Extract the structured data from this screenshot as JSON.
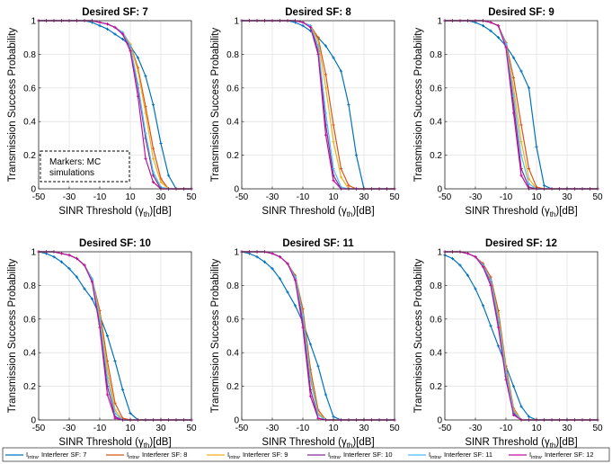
{
  "figure": {
    "annotation": [
      "Markers: MC",
      "simulations"
    ],
    "legend": {
      "label_prefix": "I",
      "label_sub": "intra",
      "label_suffix": ", Interferer SF: ",
      "entries": [
        {
          "sf": "7",
          "color": "#0072BD"
        },
        {
          "sf": "8",
          "color": "#D95319"
        },
        {
          "sf": "9",
          "color": "#EDB120"
        },
        {
          "sf": "10",
          "color": "#7E2F8E"
        },
        {
          "sf": "11",
          "color": "#4DBEEE"
        },
        {
          "sf": "12",
          "color": "#C0109A"
        }
      ]
    }
  },
  "chart_data": [
    {
      "type": "line",
      "title": "Desired SF: 7",
      "xlabel": "SINR Threshold",
      "xlabel_sym": "γ",
      "xlabel_sub": "th",
      "xlabel_unit": "[dB]",
      "ylabel": "Transmission Success Probability",
      "xlim": [
        -50,
        50
      ],
      "ylim": [
        0,
        1
      ],
      "grid": true,
      "xticks": [
        -50,
        -30,
        -10,
        10,
        30,
        50
      ],
      "yticks": [
        0,
        0.2,
        0.4,
        0.6,
        0.8,
        1
      ],
      "x": [
        -50,
        -45,
        -40,
        -35,
        -30,
        -25,
        -20,
        -15,
        -10,
        -5,
        0,
        5,
        10,
        15,
        20,
        25,
        30,
        35,
        40,
        45,
        50
      ],
      "series": [
        {
          "values": [
            1,
            1,
            1,
            1,
            1,
            1,
            1,
            0.99,
            0.97,
            0.95,
            0.92,
            0.89,
            0.85,
            0.78,
            0.67,
            0.5,
            0.27,
            0.08,
            0,
            0,
            0
          ]
        },
        {
          "values": [
            1,
            1,
            1,
            1,
            1,
            1,
            1,
            1,
            0.99,
            0.98,
            0.96,
            0.93,
            0.86,
            0.72,
            0.49,
            0.24,
            0.06,
            0,
            0,
            0,
            0
          ]
        },
        {
          "values": [
            1,
            1,
            1,
            1,
            1,
            1,
            1,
            1,
            0.99,
            0.98,
            0.96,
            0.93,
            0.86,
            0.7,
            0.45,
            0.18,
            0.04,
            0,
            0,
            0,
            0
          ]
        },
        {
          "values": [
            1,
            1,
            1,
            1,
            1,
            1,
            1,
            1,
            0.99,
            0.98,
            0.96,
            0.93,
            0.84,
            0.6,
            0.3,
            0.08,
            0,
            0,
            0,
            0,
            0
          ]
        },
        {
          "values": [
            1,
            1,
            1,
            1,
            1,
            1,
            1,
            1,
            0.99,
            0.98,
            0.96,
            0.93,
            0.85,
            0.62,
            0.33,
            0.1,
            0.01,
            0,
            0,
            0,
            0
          ]
        },
        {
          "values": [
            1,
            1,
            1,
            1,
            1,
            1,
            1,
            1,
            0.99,
            0.98,
            0.96,
            0.92,
            0.82,
            0.55,
            0.18,
            0.04,
            0,
            0,
            0,
            0,
            0
          ]
        }
      ]
    },
    {
      "type": "line",
      "title": "Desired SF: 8",
      "xlabel": "SINR Threshold",
      "xlabel_sym": "γ",
      "xlabel_sub": "th",
      "xlabel_unit": "[dB]",
      "ylabel": "Transmission Success Probability",
      "xlim": [
        -50,
        50
      ],
      "ylim": [
        0,
        1
      ],
      "grid": true,
      "xticks": [
        -50,
        -30,
        -10,
        10,
        30,
        50
      ],
      "yticks": [
        0,
        0.2,
        0.4,
        0.6,
        0.8,
        1
      ],
      "x": [
        -50,
        -45,
        -40,
        -35,
        -30,
        -25,
        -20,
        -15,
        -10,
        -5,
        0,
        5,
        10,
        15,
        20,
        25,
        30,
        35,
        40,
        45,
        50
      ],
      "series": [
        {
          "values": [
            1,
            1,
            1,
            1,
            1,
            1,
            1,
            0.99,
            0.97,
            0.94,
            0.9,
            0.85,
            0.78,
            0.7,
            0.5,
            0.2,
            0,
            0,
            0,
            0,
            0
          ]
        },
        {
          "values": [
            1,
            1,
            1,
            1,
            1,
            1,
            1,
            1,
            0.99,
            0.97,
            0.9,
            0.68,
            0.38,
            0.12,
            0.02,
            0,
            0,
            0,
            0,
            0,
            0
          ]
        },
        {
          "values": [
            1,
            1,
            1,
            1,
            1,
            1,
            1,
            1,
            0.99,
            0.97,
            0.88,
            0.6,
            0.28,
            0.07,
            0,
            0,
            0,
            0,
            0,
            0,
            0
          ]
        },
        {
          "values": [
            1,
            1,
            1,
            1,
            1,
            1,
            1,
            1,
            0.99,
            0.97,
            0.82,
            0.38,
            0.08,
            0,
            0,
            0,
            0,
            0,
            0,
            0,
            0
          ]
        },
        {
          "values": [
            1,
            1,
            1,
            1,
            1,
            1,
            1,
            1,
            0.99,
            0.97,
            0.85,
            0.45,
            0.12,
            0.01,
            0,
            0,
            0,
            0,
            0,
            0,
            0
          ]
        },
        {
          "values": [
            1,
            1,
            1,
            1,
            1,
            1,
            1,
            1,
            0.99,
            0.96,
            0.8,
            0.32,
            0.05,
            0,
            0,
            0,
            0,
            0,
            0,
            0,
            0
          ]
        }
      ]
    },
    {
      "type": "line",
      "title": "Desired SF: 9",
      "xlabel": "SINR Threshold",
      "xlabel_sym": "γ",
      "xlabel_sub": "th",
      "xlabel_unit": "[dB]",
      "ylabel": "Transmission Success Probability",
      "xlim": [
        -50,
        50
      ],
      "ylim": [
        0,
        1
      ],
      "grid": true,
      "xticks": [
        -50,
        -30,
        -10,
        10,
        30,
        50
      ],
      "yticks": [
        0,
        0.2,
        0.4,
        0.6,
        0.8,
        1
      ],
      "x": [
        -50,
        -45,
        -40,
        -35,
        -30,
        -25,
        -20,
        -15,
        -10,
        -5,
        0,
        5,
        10,
        15,
        20,
        25,
        30,
        35,
        40,
        45,
        50
      ],
      "series": [
        {
          "values": [
            1,
            1,
            1,
            1,
            0.99,
            0.97,
            0.94,
            0.9,
            0.85,
            0.78,
            0.7,
            0.6,
            0.25,
            0.02,
            0,
            0,
            0,
            0,
            0,
            0,
            0
          ]
        },
        {
          "values": [
            1,
            1,
            1,
            1,
            1,
            1,
            0.99,
            0.97,
            0.87,
            0.66,
            0.38,
            0.12,
            0.01,
            0,
            0,
            0,
            0,
            0,
            0,
            0,
            0
          ]
        },
        {
          "values": [
            1,
            1,
            1,
            1,
            1,
            1,
            0.99,
            0.97,
            0.86,
            0.6,
            0.28,
            0.06,
            0,
            0,
            0,
            0,
            0,
            0,
            0,
            0,
            0
          ]
        },
        {
          "values": [
            1,
            1,
            1,
            1,
            1,
            1,
            0.99,
            0.97,
            0.85,
            0.5,
            0.12,
            0.01,
            0,
            0,
            0,
            0,
            0,
            0,
            0,
            0,
            0
          ]
        },
        {
          "values": [
            1,
            1,
            1,
            1,
            1,
            1,
            0.99,
            0.97,
            0.86,
            0.55,
            0.2,
            0.03,
            0,
            0,
            0,
            0,
            0,
            0,
            0,
            0,
            0
          ]
        },
        {
          "values": [
            1,
            1,
            1,
            1,
            1,
            1,
            0.99,
            0.97,
            0.84,
            0.45,
            0.08,
            0,
            0,
            0,
            0,
            0,
            0,
            0,
            0,
            0,
            0
          ]
        }
      ]
    },
    {
      "type": "line",
      "title": "Desired SF: 10",
      "xlabel": "SINR Threshold",
      "xlabel_sym": "γ",
      "xlabel_sub": "th",
      "xlabel_unit": "[dB]",
      "ylabel": "Transmission Success Probability",
      "xlim": [
        -50,
        50
      ],
      "ylim": [
        0,
        1
      ],
      "grid": true,
      "xticks": [
        -50,
        -30,
        -10,
        10,
        30,
        50
      ],
      "yticks": [
        0,
        0.2,
        0.4,
        0.6,
        0.8,
        1
      ],
      "x": [
        -50,
        -45,
        -40,
        -35,
        -30,
        -25,
        -20,
        -15,
        -10,
        -5,
        0,
        5,
        10,
        15,
        20,
        25,
        30,
        35,
        40,
        45,
        50
      ],
      "series": [
        {
          "values": [
            1,
            0.99,
            0.97,
            0.94,
            0.9,
            0.85,
            0.78,
            0.72,
            0.62,
            0.5,
            0.35,
            0.18,
            0.04,
            0,
            0,
            0,
            0,
            0,
            0,
            0,
            0
          ]
        },
        {
          "values": [
            1,
            1,
            1,
            0.99,
            0.98,
            0.96,
            0.92,
            0.84,
            0.65,
            0.35,
            0.1,
            0.01,
            0,
            0,
            0,
            0,
            0,
            0,
            0,
            0,
            0
          ]
        },
        {
          "values": [
            1,
            1,
            1,
            0.99,
            0.98,
            0.96,
            0.92,
            0.84,
            0.62,
            0.3,
            0.06,
            0,
            0,
            0,
            0,
            0,
            0,
            0,
            0,
            0,
            0
          ]
        },
        {
          "values": [
            1,
            1,
            1,
            0.99,
            0.98,
            0.96,
            0.92,
            0.83,
            0.57,
            0.2,
            0.02,
            0,
            0,
            0,
            0,
            0,
            0,
            0,
            0,
            0,
            0
          ]
        },
        {
          "values": [
            1,
            1,
            1,
            0.99,
            0.98,
            0.96,
            0.92,
            0.84,
            0.6,
            0.25,
            0.04,
            0,
            0,
            0,
            0,
            0,
            0,
            0,
            0,
            0,
            0
          ]
        },
        {
          "values": [
            1,
            1,
            1,
            0.99,
            0.98,
            0.96,
            0.92,
            0.82,
            0.55,
            0.15,
            0.01,
            0,
            0,
            0,
            0,
            0,
            0,
            0,
            0,
            0,
            0
          ]
        }
      ]
    },
    {
      "type": "line",
      "title": "Desired SF: 11",
      "xlabel": "SINR Threshold",
      "xlabel_sym": "γ",
      "xlabel_sub": "th",
      "xlabel_unit": "[dB]",
      "ylabel": "Transmission Success Probability",
      "xlim": [
        -50,
        50
      ],
      "ylim": [
        0,
        1
      ],
      "grid": true,
      "xticks": [
        -50,
        -30,
        -10,
        10,
        30,
        50
      ],
      "yticks": [
        0,
        0.2,
        0.4,
        0.6,
        0.8,
        1
      ],
      "x": [
        -50,
        -45,
        -40,
        -35,
        -30,
        -25,
        -20,
        -15,
        -10,
        -5,
        0,
        5,
        10,
        15,
        20,
        25,
        30,
        35,
        40,
        45,
        50
      ],
      "series": [
        {
          "values": [
            1,
            0.99,
            0.97,
            0.94,
            0.9,
            0.84,
            0.76,
            0.68,
            0.58,
            0.45,
            0.32,
            0.15,
            0.02,
            0,
            0,
            0,
            0,
            0,
            0,
            0,
            0
          ]
        },
        {
          "values": [
            1,
            1,
            1,
            1,
            0.99,
            0.97,
            0.93,
            0.86,
            0.66,
            0.3,
            0.06,
            0,
            0,
            0,
            0,
            0,
            0,
            0,
            0,
            0,
            0
          ]
        },
        {
          "values": [
            1,
            1,
            1,
            1,
            0.99,
            0.97,
            0.93,
            0.85,
            0.63,
            0.26,
            0.04,
            0,
            0,
            0,
            0,
            0,
            0,
            0,
            0,
            0,
            0
          ]
        },
        {
          "values": [
            1,
            1,
            1,
            1,
            0.99,
            0.97,
            0.93,
            0.84,
            0.58,
            0.18,
            0.01,
            0,
            0,
            0,
            0,
            0,
            0,
            0,
            0,
            0,
            0
          ]
        },
        {
          "values": [
            1,
            1,
            1,
            1,
            0.99,
            0.97,
            0.93,
            0.85,
            0.62,
            0.24,
            0.03,
            0,
            0,
            0,
            0,
            0,
            0,
            0,
            0,
            0,
            0
          ]
        },
        {
          "values": [
            1,
            1,
            1,
            1,
            0.99,
            0.97,
            0.93,
            0.83,
            0.55,
            0.14,
            0.01,
            0,
            0,
            0,
            0,
            0,
            0,
            0,
            0,
            0,
            0
          ]
        }
      ]
    },
    {
      "type": "line",
      "title": "Desired SF: 12",
      "xlabel": "SINR Threshold",
      "xlabel_sym": "γ",
      "xlabel_sub": "th",
      "xlabel_unit": "[dB]",
      "ylabel": "Transmission Success Probability",
      "xlim": [
        -50,
        50
      ],
      "ylim": [
        0,
        1
      ],
      "grid": true,
      "xticks": [
        -50,
        -30,
        -10,
        10,
        30,
        50
      ],
      "yticks": [
        0,
        0.2,
        0.4,
        0.6,
        0.8,
        1
      ],
      "x": [
        -50,
        -45,
        -40,
        -35,
        -30,
        -25,
        -20,
        -15,
        -10,
        -5,
        0,
        5,
        10,
        15,
        20,
        25,
        30,
        35,
        40,
        45,
        50
      ],
      "series": [
        {
          "values": [
            0.98,
            0.96,
            0.92,
            0.86,
            0.78,
            0.68,
            0.56,
            0.44,
            0.32,
            0.2,
            0.08,
            0.02,
            0,
            0,
            0,
            0,
            0,
            0,
            0,
            0,
            0
          ]
        },
        {
          "values": [
            1,
            1,
            1,
            0.99,
            0.97,
            0.93,
            0.85,
            0.65,
            0.32,
            0.07,
            0,
            0,
            0,
            0,
            0,
            0,
            0,
            0,
            0,
            0,
            0
          ]
        },
        {
          "values": [
            1,
            1,
            1,
            0.99,
            0.97,
            0.92,
            0.83,
            0.62,
            0.3,
            0.06,
            0,
            0,
            0,
            0,
            0,
            0,
            0,
            0,
            0,
            0,
            0
          ]
        },
        {
          "values": [
            1,
            1,
            1,
            0.99,
            0.97,
            0.92,
            0.82,
            0.58,
            0.26,
            0.04,
            0,
            0,
            0,
            0,
            0,
            0,
            0,
            0,
            0,
            0,
            0
          ]
        },
        {
          "values": [
            1,
            1,
            1,
            0.99,
            0.97,
            0.92,
            0.83,
            0.6,
            0.28,
            0.05,
            0,
            0,
            0,
            0,
            0,
            0,
            0,
            0,
            0,
            0,
            0
          ]
        },
        {
          "values": [
            1,
            1,
            1,
            0.99,
            0.97,
            0.91,
            0.8,
            0.55,
            0.24,
            0.03,
            0,
            0,
            0,
            0,
            0,
            0,
            0,
            0,
            0,
            0,
            0
          ]
        }
      ]
    }
  ]
}
